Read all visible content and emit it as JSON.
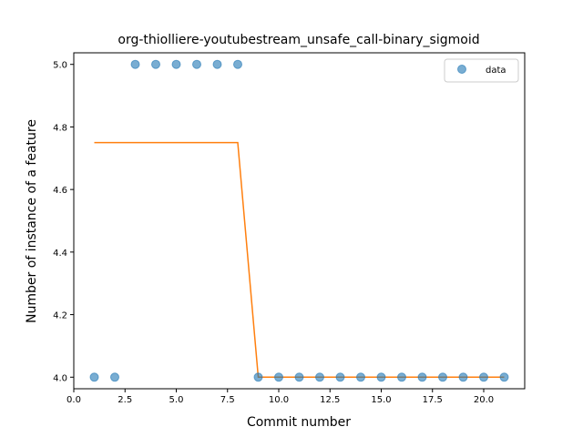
{
  "chart_data": {
    "type": "scatter",
    "title": "org-thiolliere-youtubestream_unsafe_call-binary_sigmoid",
    "xlabel": "Commit number",
    "ylabel": "Number of instance of a feature",
    "xlim": [
      0.0,
      22.0
    ],
    "ylim": [
      3.963,
      5.037
    ],
    "xticks": [
      0.0,
      2.5,
      5.0,
      7.5,
      10.0,
      12.5,
      15.0,
      17.5,
      20.0
    ],
    "xtick_labels": [
      "0.0",
      "2.5",
      "5.0",
      "7.5",
      "10.0",
      "12.5",
      "15.0",
      "17.5",
      "20.0"
    ],
    "yticks": [
      4.0,
      4.2,
      4.4,
      4.6,
      4.8,
      5.0
    ],
    "ytick_labels": [
      "4.0",
      "4.2",
      "4.4",
      "4.6",
      "4.8",
      "5.0"
    ],
    "grid": false,
    "legend_position": "top-right",
    "series": [
      {
        "name": "data",
        "kind": "scatter",
        "color": "#1f77b4",
        "x": [
          1,
          2,
          3,
          4,
          5,
          6,
          7,
          8,
          9,
          10,
          11,
          12,
          13,
          14,
          15,
          16,
          17,
          18,
          19,
          20,
          21
        ],
        "y": [
          4,
          4,
          5,
          5,
          5,
          5,
          5,
          5,
          4,
          4,
          4,
          4,
          4,
          4,
          4,
          4,
          4,
          4,
          4,
          4,
          4
        ]
      },
      {
        "kind": "line",
        "color": "#ff7f0e",
        "x": [
          1,
          2,
          3,
          4,
          5,
          6,
          7,
          8,
          9,
          10,
          11,
          12,
          13,
          14,
          15,
          16,
          17,
          18,
          19,
          20,
          21
        ],
        "y": [
          4.75,
          4.75,
          4.75,
          4.75,
          4.75,
          4.75,
          4.75,
          4.75,
          4.0,
          4.0,
          4.0,
          4.0,
          4.0,
          4.0,
          4.0,
          4.0,
          4.0,
          4.0,
          4.0,
          4.0,
          4.0
        ]
      }
    ]
  }
}
